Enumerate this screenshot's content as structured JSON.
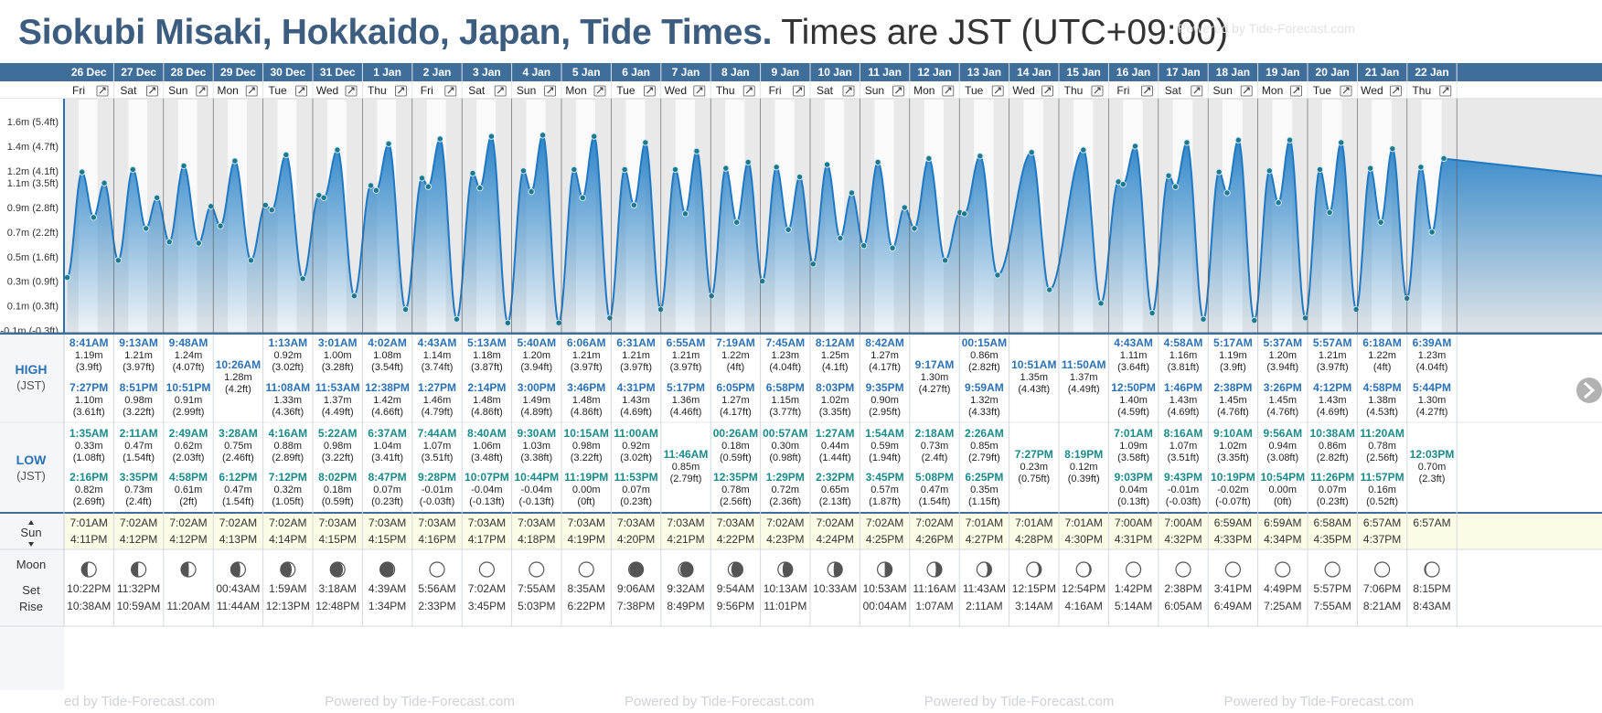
{
  "header": {
    "title_location": "Siokubi Misaki, Hokkaido, Japan, Tide Times.",
    "title_timezone": "Times are JST (UTC+09:00)",
    "watermark": "Powered by Tide-Forecast.com",
    "watermark_left_fragment": "ed by Tide-Forecast.com"
  },
  "colors": {
    "header_row": "#3f6e9a",
    "title": "#3c5d7f",
    "tide_fill": "#2c84c8",
    "high_label": "#2a72b5",
    "low_label": "#1a8a8a",
    "sun_row": "#fbfbe6"
  },
  "row_labels": {
    "high": "HIGH",
    "low": "LOW",
    "tz": "(JST)",
    "sun": "Sun",
    "moon": "Moon",
    "set": "Set",
    "rise": "Rise",
    "expand_icon": "expand-icon",
    "sun_arrows": "up-down-arrows"
  },
  "chart_data": {
    "type": "area",
    "title": "",
    "yunit": "m",
    "y_ticks": [
      "-0.1m (-0.3ft)",
      "0.1m (0.3ft)",
      "0.3m (0.9ft)",
      "0.5m (1.6ft)",
      "0.7m (2.2ft)",
      "0.9m (2.8ft)",
      "1.1m (3.5ft)",
      "1.2m (4.1ft)",
      "1.4m (4.7ft)",
      "1.6m (5.4ft)"
    ],
    "y_tick_values": [
      -0.1,
      0.1,
      0.3,
      0.5,
      0.7,
      0.9,
      1.1,
      1.2,
      1.4,
      1.6
    ],
    "ylim": [
      -0.12,
      1.72
    ],
    "days": [
      {
        "date": "26 Dec",
        "dow": "Fri",
        "high": [
          [
            "8:41AM",
            "1.19m",
            "(3.9ft)",
            1.19
          ],
          [
            "7:27PM",
            "1.10m",
            "(3.61ft)",
            1.1
          ]
        ],
        "low": [
          [
            "1:35AM",
            "0.33m",
            "(1.08ft)",
            0.33
          ],
          [
            "2:16PM",
            "0.82m",
            "(2.69ft)",
            0.82
          ]
        ],
        "sunrise": "7:01AM",
        "sunset": "4:11PM",
        "moonphase": 0.22,
        "moonset": "10:22PM",
        "moonrise": "10:38AM"
      },
      {
        "date": "27 Dec",
        "dow": "Sat",
        "high": [
          [
            "9:13AM",
            "1.21m",
            "(3.97ft)",
            1.21
          ],
          [
            "8:51PM",
            "0.98m",
            "(3.22ft)",
            0.98
          ]
        ],
        "low": [
          [
            "2:11AM",
            "0.47m",
            "(1.54ft)",
            0.47
          ],
          [
            "3:35PM",
            "0.73m",
            "(2.4ft)",
            0.73
          ]
        ],
        "sunrise": "7:02AM",
        "sunset": "4:12PM",
        "moonphase": 0.24,
        "moonset": "11:32PM",
        "moonrise": "10:59AM"
      },
      {
        "date": "28 Dec",
        "dow": "Sun",
        "high": [
          [
            "9:48AM",
            "1.24m",
            "(4.07ft)",
            1.24
          ],
          [
            "10:51PM",
            "0.91m",
            "(2.99ft)",
            0.91
          ]
        ],
        "low": [
          [
            "2:49AM",
            "0.62m",
            "(2.03ft)",
            0.62
          ],
          [
            "4:58PM",
            "0.61m",
            "(2ft)",
            0.61
          ]
        ],
        "sunrise": "7:02AM",
        "sunset": "4:12PM",
        "moonphase": 0.26,
        "moonset": "",
        "moonrise": "11:20AM"
      },
      {
        "date": "29 Dec",
        "dow": "Mon",
        "high": [
          [
            "10:26AM",
            "1.28m",
            "(4.2ft)",
            1.28
          ]
        ],
        "low": [
          [
            "3:28AM",
            "0.75m",
            "(2.46ft)",
            0.75
          ],
          [
            "6:12PM",
            "0.47m",
            "(1.54ft)",
            0.47
          ]
        ],
        "sunrise": "7:02AM",
        "sunset": "4:13PM",
        "moonphase": 0.3,
        "moonset": "00:43AM",
        "moonrise": "11:44AM"
      },
      {
        "date": "30 Dec",
        "dow": "Tue",
        "high": [
          [
            "1:13AM",
            "0.92m",
            "(3.02ft)",
            0.92
          ],
          [
            "11:08AM",
            "1.33m",
            "(4.36ft)",
            1.33
          ]
        ],
        "low": [
          [
            "4:16AM",
            "0.88m",
            "(2.89ft)",
            0.88
          ],
          [
            "7:12PM",
            "0.32m",
            "(1.05ft)",
            0.32
          ]
        ],
        "sunrise": "7:02AM",
        "sunset": "4:14PM",
        "moonphase": 0.34,
        "moonset": "1:59AM",
        "moonrise": "12:13PM"
      },
      {
        "date": "31 Dec",
        "dow": "Wed",
        "high": [
          [
            "3:01AM",
            "1.00m",
            "(3.28ft)",
            1.0
          ],
          [
            "11:53AM",
            "1.37m",
            "(4.49ft)",
            1.37
          ]
        ],
        "low": [
          [
            "5:22AM",
            "0.98m",
            "(3.22ft)",
            0.98
          ],
          [
            "8:02PM",
            "0.18m",
            "(0.59ft)",
            0.18
          ]
        ],
        "sunrise": "7:03AM",
        "sunset": "4:15PM",
        "moonphase": 0.38,
        "moonset": "3:18AM",
        "moonrise": "12:48PM"
      },
      {
        "date": "1 Jan",
        "dow": "Thu",
        "high": [
          [
            "4:02AM",
            "1.08m",
            "(3.54ft)",
            1.08
          ],
          [
            "12:38PM",
            "1.42m",
            "(4.66ft)",
            1.42
          ]
        ],
        "low": [
          [
            "6:37AM",
            "1.04m",
            "(3.41ft)",
            1.04
          ],
          [
            "8:47PM",
            "0.07m",
            "(0.23ft)",
            0.07
          ]
        ],
        "sunrise": "7:03AM",
        "sunset": "4:15PM",
        "moonphase": 0.42,
        "moonset": "4:39AM",
        "moonrise": "1:34PM"
      },
      {
        "date": "2 Jan",
        "dow": "Fri",
        "high": [
          [
            "4:43AM",
            "1.14m",
            "(3.74ft)",
            1.14
          ],
          [
            "1:27PM",
            "1.46m",
            "(4.79ft)",
            1.46
          ]
        ],
        "low": [
          [
            "7:44AM",
            "1.07m",
            "(3.51ft)",
            1.07
          ],
          [
            "9:28PM",
            "-0.01m",
            "(-0.03ft)",
            -0.01
          ]
        ],
        "sunrise": "7:03AM",
        "sunset": "4:16PM",
        "moonphase": 0.46,
        "moonset": "5:56AM",
        "moonrise": "2:33PM"
      },
      {
        "date": "3 Jan",
        "dow": "Sat",
        "high": [
          [
            "5:13AM",
            "1.18m",
            "(3.87ft)",
            1.18
          ],
          [
            "2:14PM",
            "1.48m",
            "(4.86ft)",
            1.48
          ]
        ],
        "low": [
          [
            "8:40AM",
            "1.06m",
            "(3.48ft)",
            1.06
          ],
          [
            "10:07PM",
            "-0.04m",
            "(-0.13ft)",
            -0.04
          ]
        ],
        "sunrise": "7:03AM",
        "sunset": "4:17PM",
        "moonphase": 0.49,
        "moonset": "7:02AM",
        "moonrise": "3:45PM"
      },
      {
        "date": "4 Jan",
        "dow": "Sun",
        "high": [
          [
            "5:40AM",
            "1.20m",
            "(3.94ft)",
            1.2
          ],
          [
            "3:00PM",
            "1.49m",
            "(4.89ft)",
            1.49
          ]
        ],
        "low": [
          [
            "9:30AM",
            "1.03m",
            "(3.38ft)",
            1.03
          ],
          [
            "10:44PM",
            "-0.04m",
            "(-0.13ft)",
            -0.04
          ]
        ],
        "sunrise": "7:03AM",
        "sunset": "4:18PM",
        "moonphase": 0.5,
        "moonset": "7:55AM",
        "moonrise": "5:03PM"
      },
      {
        "date": "5 Jan",
        "dow": "Mon",
        "high": [
          [
            "6:06AM",
            "1.21m",
            "(3.97ft)",
            1.21
          ],
          [
            "3:46PM",
            "1.48m",
            "(4.86ft)",
            1.48
          ]
        ],
        "low": [
          [
            "10:15AM",
            "0.98m",
            "(3.22ft)",
            0.98
          ],
          [
            "11:19PM",
            "0.00m",
            "(0ft)",
            0.0
          ]
        ],
        "sunrise": "7:03AM",
        "sunset": "4:19PM",
        "moonphase": 0.53,
        "moonset": "8:35AM",
        "moonrise": "6:22PM"
      },
      {
        "date": "6 Jan",
        "dow": "Tue",
        "high": [
          [
            "6:31AM",
            "1.21m",
            "(3.97ft)",
            1.21
          ],
          [
            "4:31PM",
            "1.43m",
            "(4.69ft)",
            1.43
          ]
        ],
        "low": [
          [
            "11:00AM",
            "0.92m",
            "(3.02ft)",
            0.92
          ],
          [
            "11:53PM",
            "0.07m",
            "(0.23ft)",
            0.07
          ]
        ],
        "sunrise": "7:03AM",
        "sunset": "4:20PM",
        "moonphase": 0.57,
        "moonset": "9:06AM",
        "moonrise": "7:38PM"
      },
      {
        "date": "7 Jan",
        "dow": "Wed",
        "high": [
          [
            "6:55AM",
            "1.21m",
            "(3.97ft)",
            1.21
          ],
          [
            "5:17PM",
            "1.36m",
            "(4.46ft)",
            1.36
          ]
        ],
        "low": [
          [
            "11:46AM",
            "0.85m",
            "(2.79ft)",
            0.85
          ]
        ],
        "sunrise": "7:03AM",
        "sunset": "4:21PM",
        "moonphase": 0.61,
        "moonset": "9:32AM",
        "moonrise": "8:49PM"
      },
      {
        "date": "8 Jan",
        "dow": "Thu",
        "high": [
          [
            "7:19AM",
            "1.22m",
            "(4ft)",
            1.22
          ],
          [
            "6:05PM",
            "1.27m",
            "(4.17ft)",
            1.27
          ]
        ],
        "low": [
          [
            "00:26AM",
            "0.18m",
            "(0.59ft)",
            0.18
          ],
          [
            "12:35PM",
            "0.78m",
            "(2.56ft)",
            0.78
          ]
        ],
        "sunrise": "7:03AM",
        "sunset": "4:22PM",
        "moonphase": 0.65,
        "moonset": "9:54AM",
        "moonrise": "9:56PM"
      },
      {
        "date": "9 Jan",
        "dow": "Fri",
        "high": [
          [
            "7:45AM",
            "1.23m",
            "(4.04ft)",
            1.23
          ],
          [
            "6:58PM",
            "1.15m",
            "(3.77ft)",
            1.15
          ]
        ],
        "low": [
          [
            "00:57AM",
            "0.30m",
            "(0.98ft)",
            0.3
          ],
          [
            "1:29PM",
            "0.72m",
            "(2.36ft)",
            0.72
          ]
        ],
        "sunrise": "7:02AM",
        "sunset": "4:23PM",
        "moonphase": 0.69,
        "moonset": "10:13AM",
        "moonrise": "11:01PM"
      },
      {
        "date": "10 Jan",
        "dow": "Sat",
        "high": [
          [
            "8:12AM",
            "1.25m",
            "(4.1ft)",
            1.25
          ],
          [
            "8:03PM",
            "1.02m",
            "(3.35ft)",
            1.02
          ]
        ],
        "low": [
          [
            "1:27AM",
            "0.44m",
            "(1.44ft)",
            0.44
          ],
          [
            "2:32PM",
            "0.65m",
            "(2.13ft)",
            0.65
          ]
        ],
        "sunrise": "7:02AM",
        "sunset": "4:24PM",
        "moonphase": 0.72,
        "moonset": "10:33AM",
        "moonrise": ""
      },
      {
        "date": "11 Jan",
        "dow": "Sun",
        "high": [
          [
            "8:42AM",
            "1.27m",
            "(4.17ft)",
            1.27
          ],
          [
            "9:35PM",
            "0.90m",
            "(2.95ft)",
            0.9
          ]
        ],
        "low": [
          [
            "1:54AM",
            "0.59m",
            "(1.94ft)",
            0.59
          ],
          [
            "3:45PM",
            "0.57m",
            "(1.87ft)",
            0.57
          ]
        ],
        "sunrise": "7:02AM",
        "sunset": "4:25PM",
        "moonphase": 0.75,
        "moonset": "10:53AM",
        "moonrise": "00:04AM"
      },
      {
        "date": "12 Jan",
        "dow": "Mon",
        "high": [
          [
            "9:17AM",
            "1.30m",
            "(4.27ft)",
            1.3
          ]
        ],
        "low": [
          [
            "2:18AM",
            "0.73m",
            "(2.4ft)",
            0.73
          ],
          [
            "5:08PM",
            "0.47m",
            "(1.54ft)",
            0.47
          ]
        ],
        "sunrise": "7:02AM",
        "sunset": "4:26PM",
        "moonphase": 0.78,
        "moonset": "11:16AM",
        "moonrise": "1:07AM"
      },
      {
        "date": "13 Jan",
        "dow": "Tue",
        "high": [
          [
            "00:15AM",
            "0.86m",
            "(2.82ft)",
            0.86
          ],
          [
            "9:59AM",
            "1.32m",
            "(4.33ft)",
            1.32
          ]
        ],
        "low": [
          [
            "2:26AM",
            "0.85m",
            "(2.79ft)",
            0.85
          ],
          [
            "6:25PM",
            "0.35m",
            "(1.15ft)",
            0.35
          ]
        ],
        "sunrise": "7:01AM",
        "sunset": "4:27PM",
        "moonphase": 0.82,
        "moonset": "11:43AM",
        "moonrise": "2:11AM"
      },
      {
        "date": "14 Jan",
        "dow": "Wed",
        "high": [
          [
            "10:51AM",
            "1.35m",
            "(4.43ft)",
            1.35
          ]
        ],
        "low": [
          [
            "7:27PM",
            "0.23m",
            "(0.75ft)",
            0.23
          ]
        ],
        "sunrise": "7:01AM",
        "sunset": "4:28PM",
        "moonphase": 0.86,
        "moonset": "12:15PM",
        "moonrise": "3:14AM"
      },
      {
        "date": "15 Jan",
        "dow": "Thu",
        "high": [
          [
            "11:50AM",
            "1.37m",
            "(4.49ft)",
            1.37
          ]
        ],
        "low": [
          [
            "8:19PM",
            "0.12m",
            "(0.39ft)",
            0.12
          ]
        ],
        "sunrise": "7:01AM",
        "sunset": "4:30PM",
        "moonphase": 0.89,
        "moonset": "12:54PM",
        "moonrise": "4:16AM"
      },
      {
        "date": "16 Jan",
        "dow": "Fri",
        "high": [
          [
            "4:43AM",
            "1.11m",
            "(3.64ft)",
            1.11
          ],
          [
            "12:50PM",
            "1.40m",
            "(4.59ft)",
            1.4
          ]
        ],
        "low": [
          [
            "7:01AM",
            "1.09m",
            "(3.58ft)",
            1.09
          ],
          [
            "9:03PM",
            "0.04m",
            "(0.13ft)",
            0.04
          ]
        ],
        "sunrise": "7:00AM",
        "sunset": "4:31PM",
        "moonphase": 0.93,
        "moonset": "1:42PM",
        "moonrise": "5:14AM"
      },
      {
        "date": "17 Jan",
        "dow": "Sat",
        "high": [
          [
            "4:58AM",
            "1.16m",
            "(3.81ft)",
            1.16
          ],
          [
            "1:46PM",
            "1.43m",
            "(4.69ft)",
            1.43
          ]
        ],
        "low": [
          [
            "8:16AM",
            "1.07m",
            "(3.51ft)",
            1.07
          ],
          [
            "9:43PM",
            "-0.01m",
            "(-0.03ft)",
            -0.01
          ]
        ],
        "sunrise": "7:00AM",
        "sunset": "4:32PM",
        "moonphase": 0.96,
        "moonset": "2:38PM",
        "moonrise": "6:05AM"
      },
      {
        "date": "18 Jan",
        "dow": "Sun",
        "high": [
          [
            "5:17AM",
            "1.19m",
            "(3.9ft)",
            1.19
          ],
          [
            "2:38PM",
            "1.45m",
            "(4.76ft)",
            1.45
          ]
        ],
        "low": [
          [
            "9:10AM",
            "1.02m",
            "(3.35ft)",
            1.02
          ],
          [
            "10:19PM",
            "-0.02m",
            "(-0.07ft)",
            -0.02
          ]
        ],
        "sunrise": "6:59AM",
        "sunset": "4:33PM",
        "moonphase": 0.99,
        "moonset": "3:41PM",
        "moonrise": "6:49AM"
      },
      {
        "date": "19 Jan",
        "dow": "Mon",
        "high": [
          [
            "5:37AM",
            "1.20m",
            "(3.94ft)",
            1.2
          ],
          [
            "3:26PM",
            "1.45m",
            "(4.76ft)",
            1.45
          ]
        ],
        "low": [
          [
            "9:56AM",
            "0.94m",
            "(3.08ft)",
            0.94
          ],
          [
            "10:54PM",
            "0.00m",
            "(0ft)",
            0.0
          ]
        ],
        "sunrise": "6:59AM",
        "sunset": "4:34PM",
        "moonphase": 0.0,
        "moonset": "4:49PM",
        "moonrise": "7:25AM"
      },
      {
        "date": "20 Jan",
        "dow": "Tue",
        "high": [
          [
            "5:57AM",
            "1.21m",
            "(3.97ft)",
            1.21
          ],
          [
            "4:12PM",
            "1.43m",
            "(4.69ft)",
            1.43
          ]
        ],
        "low": [
          [
            "10:38AM",
            "0.86m",
            "(2.82ft)",
            0.86
          ],
          [
            "11:26PM",
            "0.07m",
            "(0.23ft)",
            0.07
          ]
        ],
        "sunrise": "6:58AM",
        "sunset": "4:35PM",
        "moonphase": 0.03,
        "moonset": "5:57PM",
        "moonrise": "7:55AM"
      },
      {
        "date": "21 Jan",
        "dow": "Wed",
        "high": [
          [
            "6:18AM",
            "1.22m",
            "(4ft)",
            1.22
          ],
          [
            "4:58PM",
            "1.38m",
            "(4.53ft)",
            1.38
          ]
        ],
        "low": [
          [
            "11:20AM",
            "0.78m",
            "(2.56ft)",
            0.78
          ],
          [
            "11:57PM",
            "0.16m",
            "(0.52ft)",
            0.16
          ]
        ],
        "sunrise": "6:57AM",
        "sunset": "4:37PM",
        "moonphase": 0.06,
        "moonset": "7:06PM",
        "moonrise": "8:21AM"
      },
      {
        "date": "22 Jan",
        "dow": "Thu",
        "high": [
          [
            "6:39AM",
            "1.23m",
            "(4.04ft)",
            1.23
          ],
          [
            "5:44PM",
            "1.30m",
            "(4.27ft)",
            1.3
          ]
        ],
        "low": [
          [
            "12:03PM",
            "0.70m",
            "(2.3ft)",
            0.7
          ]
        ],
        "sunrise": "6:57AM",
        "sunset": "",
        "moonphase": 0.1,
        "moonset": "8:15PM",
        "moonrise": "8:43AM"
      }
    ]
  }
}
